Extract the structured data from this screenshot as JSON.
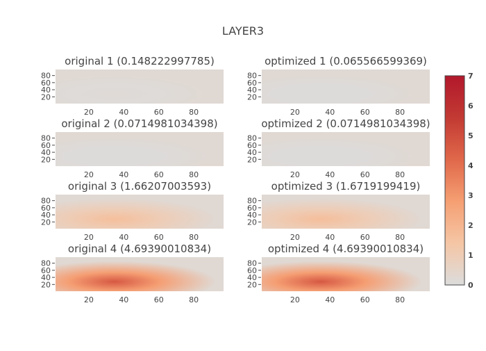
{
  "chart_data": {
    "type": "heatmap",
    "title": "LAYER3",
    "colorscale": [
      "#dcdcdc",
      "#f5c6a5",
      "#f59f73",
      "#e0684a",
      "#c23a33",
      "#b2182b"
    ],
    "zrange": [
      0,
      7
    ],
    "colorbar_ticks": [
      "0",
      "1",
      "2",
      "3",
      "4",
      "5",
      "6",
      "7"
    ],
    "xticks": [
      "20",
      "40",
      "60",
      "80"
    ],
    "yticks": [
      "80",
      "60",
      "40",
      "20"
    ],
    "panels": [
      {
        "title": "original 1 (0.148222997785)",
        "level": 0.15
      },
      {
        "title": "optimized 1 (0.065566599369)",
        "level": 0.07
      },
      {
        "title": "original 2 (0.0714981034398)",
        "level": 0.07
      },
      {
        "title": "optimized 2 (0.0714981034398)",
        "level": 0.07
      },
      {
        "title": "original 3 (1.66207003593)",
        "level": 1.66
      },
      {
        "title": "optimized 3 (1.6719199419)",
        "level": 1.67
      },
      {
        "title": "original 4 (4.69390010834)",
        "level": 4.69
      },
      {
        "title": "optimized 4 (4.69390010834)",
        "level": 4.69
      }
    ]
  }
}
